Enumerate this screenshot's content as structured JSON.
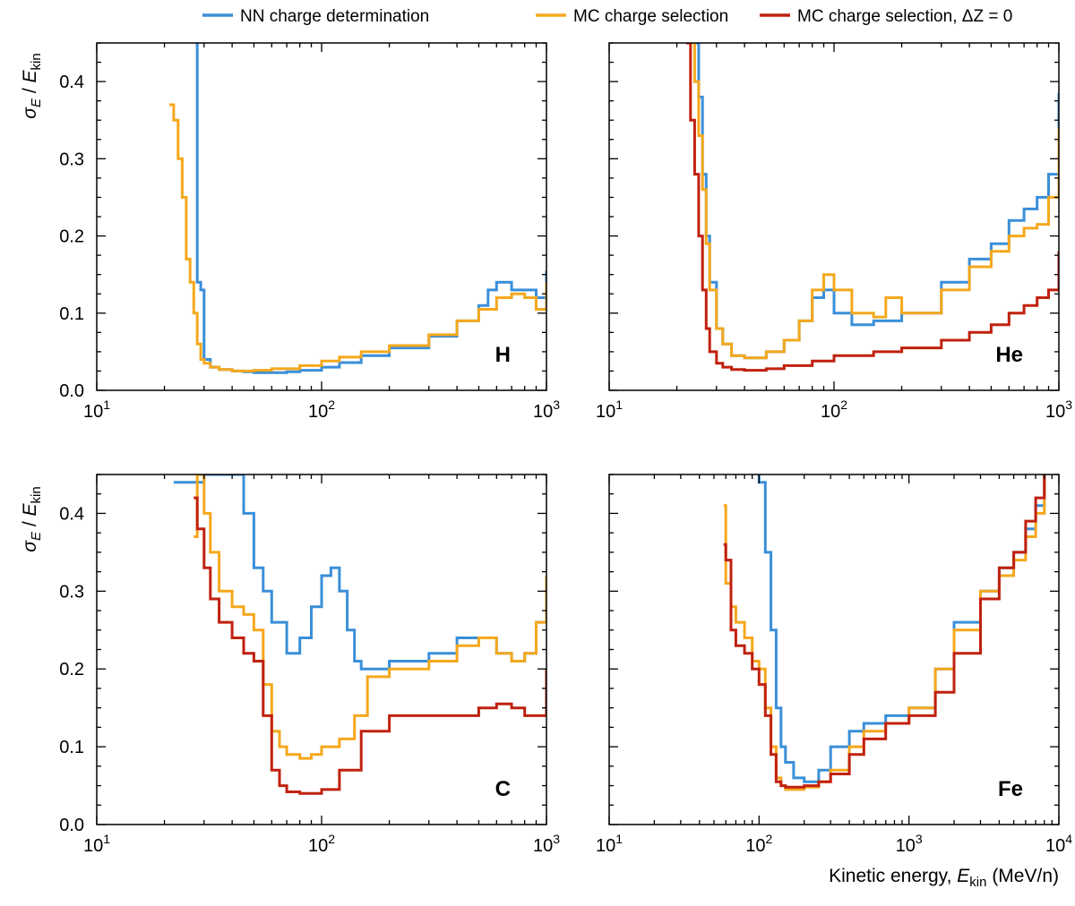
{
  "legend": [
    {
      "label": "NN charge determination",
      "color": "#3a8fd9"
    },
    {
      "label": "MC charge selection",
      "color": "#f5a81c"
    },
    {
      "label": "MC charge selection, ΔZ = 0",
      "color": "#c0210f"
    }
  ],
  "xlabel": {
    "prefix": "Kinetic energy, ",
    "sym": "E",
    "sub": "kin",
    "suffix": " (MeV/n)"
  },
  "ylabel": {
    "sym": "σ",
    "sub1": "E",
    "sep": " / ",
    "sym2": "E",
    "sub2": "kin"
  },
  "chart_data": [
    {
      "type": "line",
      "step": true,
      "title": "H",
      "xscale": "log",
      "xlim": [
        10,
        1000
      ],
      "ylim": [
        0,
        0.45
      ],
      "xticks": [
        {
          "base": "10",
          "exp": "1"
        },
        {
          "base": "10",
          "exp": "2"
        },
        {
          "base": "10",
          "exp": "3"
        }
      ],
      "yticks": [
        "0.0",
        "0.1",
        "0.2",
        "0.3",
        "0.4"
      ],
      "series": [
        {
          "name": "NN charge determination",
          "color": "#3a8fd9",
          "x": [
            27.5,
            28,
            29,
            30,
            32,
            35,
            40,
            45,
            50,
            60,
            70,
            80,
            100,
            120,
            150,
            200,
            300,
            400,
            500,
            550,
            600,
            700,
            800,
            900,
            1000
          ],
          "y": [
            0.45,
            0.14,
            0.13,
            0.04,
            0.03,
            0.027,
            0.025,
            0.024,
            0.023,
            0.023,
            0.024,
            0.026,
            0.03,
            0.036,
            0.045,
            0.055,
            0.07,
            0.09,
            0.11,
            0.13,
            0.14,
            0.13,
            0.13,
            0.12,
            0.155
          ]
        },
        {
          "name": "MC charge selection",
          "color": "#f5a81c",
          "x": [
            21,
            22,
            23,
            24,
            25,
            26,
            27,
            28,
            29,
            30,
            32,
            35,
            40,
            50,
            60,
            80,
            100,
            120,
            150,
            200,
            300,
            400,
            500,
            600,
            700,
            800,
            900,
            1000
          ],
          "y": [
            0.37,
            0.35,
            0.3,
            0.25,
            0.17,
            0.14,
            0.1,
            0.06,
            0.04,
            0.035,
            0.03,
            0.027,
            0.025,
            0.026,
            0.028,
            0.032,
            0.038,
            0.043,
            0.05,
            0.058,
            0.072,
            0.09,
            0.105,
            0.12,
            0.125,
            0.12,
            0.105,
            0.14
          ]
        }
      ]
    },
    {
      "type": "line",
      "step": true,
      "title": "He",
      "xscale": "log",
      "xlim": [
        10,
        1000
      ],
      "ylim": [
        0,
        0.45
      ],
      "xticks": [
        {
          "base": "10",
          "exp": "1"
        },
        {
          "base": "10",
          "exp": "2"
        },
        {
          "base": "10",
          "exp": "3"
        }
      ],
      "yticks": [
        "0.0",
        "0.1",
        "0.2",
        "0.3",
        "0.4"
      ],
      "series": [
        {
          "name": "NN charge determination",
          "color": "#3a8fd9",
          "x": [
            24,
            25,
            26,
            27,
            28,
            30,
            32,
            35,
            40,
            50,
            60,
            70,
            80,
            90,
            100,
            120,
            150,
            200,
            300,
            400,
            500,
            600,
            700,
            800,
            900,
            1000
          ],
          "y": [
            0.45,
            0.38,
            0.28,
            0.2,
            0.14,
            0.08,
            0.06,
            0.045,
            0.042,
            0.05,
            0.065,
            0.09,
            0.12,
            0.13,
            0.1,
            0.085,
            0.09,
            0.1,
            0.14,
            0.17,
            0.19,
            0.22,
            0.235,
            0.25,
            0.28,
            0.385
          ]
        },
        {
          "name": "MC charge selection",
          "color": "#f5a81c",
          "x": [
            23,
            24,
            25,
            26,
            27,
            28,
            30,
            32,
            35,
            40,
            50,
            60,
            70,
            80,
            90,
            100,
            120,
            150,
            170,
            200,
            300,
            400,
            500,
            600,
            700,
            800,
            900,
            1000
          ],
          "y": [
            0.45,
            0.4,
            0.33,
            0.26,
            0.19,
            0.13,
            0.08,
            0.06,
            0.045,
            0.042,
            0.05,
            0.065,
            0.09,
            0.13,
            0.15,
            0.13,
            0.1,
            0.095,
            0.12,
            0.1,
            0.13,
            0.16,
            0.18,
            0.2,
            0.21,
            0.215,
            0.25,
            0.34
          ]
        },
        {
          "name": "MC charge selection, ΔZ = 0",
          "color": "#c0210f",
          "x": [
            22,
            23,
            24,
            25,
            26,
            27,
            28,
            30,
            32,
            35,
            40,
            50,
            60,
            80,
            100,
            150,
            200,
            300,
            400,
            500,
            600,
            700,
            800,
            900,
            1000
          ],
          "y": [
            0.45,
            0.35,
            0.28,
            0.2,
            0.13,
            0.08,
            0.05,
            0.035,
            0.03,
            0.027,
            0.026,
            0.028,
            0.032,
            0.038,
            0.045,
            0.05,
            0.055,
            0.065,
            0.075,
            0.085,
            0.1,
            0.11,
            0.12,
            0.13,
            0.18
          ]
        }
      ]
    },
    {
      "type": "line",
      "step": true,
      "title": "C",
      "xscale": "log",
      "xlim": [
        10,
        1000
      ],
      "ylim": [
        0,
        0.45
      ],
      "xticks": [
        {
          "base": "10",
          "exp": "1"
        },
        {
          "base": "10",
          "exp": "2"
        },
        {
          "base": "10",
          "exp": "3"
        }
      ],
      "yticks": [
        "0.0",
        "0.1",
        "0.2",
        "0.3",
        "0.4"
      ],
      "series": [
        {
          "name": "NN charge determination",
          "color": "#3a8fd9",
          "x": [
            22,
            30,
            35,
            40,
            45,
            50,
            55,
            60,
            70,
            80,
            90,
            100,
            110,
            120,
            130,
            140,
            150,
            160,
            200,
            300,
            400,
            500,
            600,
            700,
            800,
            900,
            1000
          ],
          "y": [
            0.44,
            0.45,
            0.45,
            0.45,
            0.4,
            0.33,
            0.3,
            0.26,
            0.22,
            0.24,
            0.28,
            0.32,
            0.33,
            0.3,
            0.25,
            0.21,
            0.2,
            0.2,
            0.21,
            0.22,
            0.24,
            0.24,
            0.22,
            0.21,
            0.22,
            0.26,
            0.3
          ]
        },
        {
          "name": "MC charge selection",
          "color": "#f5a81c",
          "x": [
            27,
            28,
            30,
            32,
            35,
            40,
            45,
            50,
            55,
            60,
            65,
            70,
            80,
            90,
            100,
            120,
            140,
            160,
            200,
            300,
            400,
            500,
            600,
            700,
            800,
            900,
            1000
          ],
          "y": [
            0.37,
            0.45,
            0.4,
            0.35,
            0.3,
            0.28,
            0.27,
            0.25,
            0.18,
            0.12,
            0.1,
            0.09,
            0.085,
            0.09,
            0.1,
            0.11,
            0.14,
            0.19,
            0.2,
            0.21,
            0.23,
            0.24,
            0.22,
            0.21,
            0.22,
            0.26,
            0.32
          ]
        },
        {
          "name": "MC charge selection, ΔZ = 0",
          "color": "#c0210f",
          "x": [
            27,
            28,
            30,
            32,
            35,
            40,
            45,
            50,
            55,
            60,
            65,
            70,
            80,
            90,
            100,
            120,
            150,
            200,
            300,
            400,
            500,
            600,
            700,
            800,
            900,
            1000
          ],
          "y": [
            0.42,
            0.38,
            0.33,
            0.29,
            0.26,
            0.24,
            0.22,
            0.21,
            0.14,
            0.07,
            0.05,
            0.042,
            0.04,
            0.04,
            0.045,
            0.07,
            0.12,
            0.14,
            0.14,
            0.14,
            0.15,
            0.155,
            0.15,
            0.14,
            0.14,
            0.2
          ]
        }
      ]
    },
    {
      "type": "line",
      "step": true,
      "title": "Fe",
      "xscale": "log",
      "xlim": [
        10,
        10000
      ],
      "ylim": [
        0,
        0.45
      ],
      "xticks": [
        {
          "base": "10",
          "exp": "1"
        },
        {
          "base": "10",
          "exp": "2"
        },
        {
          "base": "10",
          "exp": "3"
        },
        {
          "base": "10",
          "exp": "4"
        }
      ],
      "yticks": [
        "0.0",
        "0.1",
        "0.2",
        "0.3",
        "0.4"
      ],
      "series": [
        {
          "name": "NN charge determination",
          "color": "#3a8fd9",
          "x": [
            98,
            100,
            110,
            120,
            130,
            140,
            150,
            170,
            200,
            250,
            300,
            400,
            500,
            700,
            1000,
            1500,
            2000,
            3000,
            4000,
            5000,
            6000,
            7000,
            8000
          ],
          "y": [
            0.45,
            0.44,
            0.35,
            0.25,
            0.15,
            0.1,
            0.08,
            0.06,
            0.055,
            0.07,
            0.1,
            0.12,
            0.13,
            0.14,
            0.15,
            0.2,
            0.26,
            0.3,
            0.33,
            0.35,
            0.38,
            0.41,
            0.45
          ]
        },
        {
          "name": "MC charge selection",
          "color": "#f5a81c",
          "x": [
            58,
            60,
            65,
            70,
            80,
            90,
            100,
            110,
            120,
            130,
            140,
            150,
            170,
            200,
            250,
            300,
            400,
            500,
            700,
            1000,
            1500,
            2000,
            3000,
            4000,
            5000,
            6000,
            7000,
            8000
          ],
          "y": [
            0.41,
            0.31,
            0.28,
            0.26,
            0.24,
            0.21,
            0.2,
            0.15,
            0.1,
            0.06,
            0.05,
            0.045,
            0.045,
            0.048,
            0.055,
            0.07,
            0.1,
            0.12,
            0.13,
            0.15,
            0.2,
            0.25,
            0.3,
            0.32,
            0.34,
            0.37,
            0.4,
            0.45
          ]
        },
        {
          "name": "MC charge selection, ΔZ = 0",
          "color": "#c0210f",
          "x": [
            58,
            60,
            65,
            70,
            80,
            90,
            100,
            110,
            120,
            130,
            140,
            150,
            170,
            200,
            250,
            300,
            400,
            500,
            700,
            1000,
            1500,
            2000,
            3000,
            4000,
            5000,
            6000,
            7000,
            8000
          ],
          "y": [
            0.36,
            0.34,
            0.25,
            0.23,
            0.22,
            0.2,
            0.18,
            0.14,
            0.09,
            0.055,
            0.05,
            0.048,
            0.048,
            0.05,
            0.055,
            0.065,
            0.09,
            0.11,
            0.13,
            0.14,
            0.17,
            0.22,
            0.29,
            0.33,
            0.35,
            0.39,
            0.42,
            0.45
          ]
        }
      ]
    }
  ]
}
